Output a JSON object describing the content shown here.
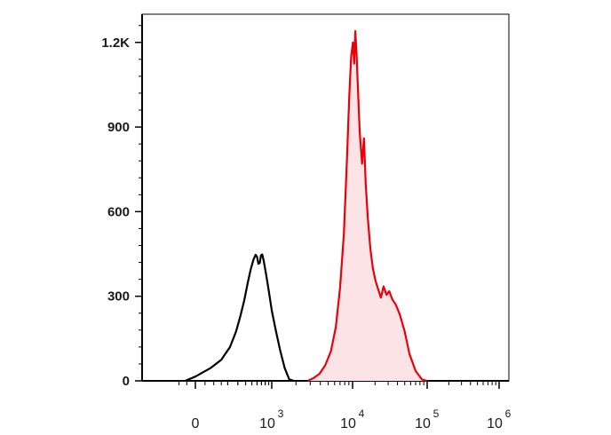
{
  "chart_data": {
    "type": "area",
    "title": "",
    "xlabel": "",
    "ylabel": "",
    "x_scale": "biexponential",
    "ylim": [
      0,
      1300
    ],
    "y_ticks": [
      {
        "value": 0,
        "label": "0"
      },
      {
        "value": 300,
        "label": "300"
      },
      {
        "value": 600,
        "label": "600"
      },
      {
        "value": 900,
        "label": "900"
      },
      {
        "value": 1200,
        "label": "1.2K"
      }
    ],
    "x_ticks": [
      {
        "value": 0,
        "base": "0",
        "exp": ""
      },
      {
        "value": 1000,
        "base": "10",
        "exp": "3"
      },
      {
        "value": 10000,
        "base": "10",
        "exp": "4"
      },
      {
        "value": 100000,
        "base": "10",
        "exp": "5"
      },
      {
        "value": 1000000,
        "base": "10",
        "exp": "6"
      }
    ],
    "grid": false,
    "legend": "none",
    "series": [
      {
        "style": "line",
        "color": "#000000",
        "points": [
          [
            -60,
            0
          ],
          [
            0,
            15
          ],
          [
            80,
            45
          ],
          [
            150,
            75
          ],
          [
            220,
            120
          ],
          [
            280,
            175
          ],
          [
            330,
            230
          ],
          [
            380,
            285
          ],
          [
            430,
            345
          ],
          [
            480,
            395
          ],
          [
            530,
            430
          ],
          [
            570,
            447
          ],
          [
            600,
            440
          ],
          [
            630,
            415
          ],
          [
            660,
            418
          ],
          [
            690,
            445
          ],
          [
            720,
            448
          ],
          [
            760,
            425
          ],
          [
            820,
            380
          ],
          [
            900,
            320
          ],
          [
            1000,
            250
          ],
          [
            1130,
            175
          ],
          [
            1280,
            105
          ],
          [
            1450,
            45
          ],
          [
            1650,
            5
          ],
          [
            1900,
            0
          ]
        ]
      },
      {
        "style": "filled",
        "color": "#e8000b",
        "fill": "#fbe3e6",
        "points": [
          [
            2800,
            0
          ],
          [
            3300,
            10
          ],
          [
            3900,
            25
          ],
          [
            4600,
            55
          ],
          [
            5400,
            105
          ],
          [
            6200,
            190
          ],
          [
            7000,
            330
          ],
          [
            7800,
            520
          ],
          [
            8500,
            780
          ],
          [
            9100,
            1010
          ],
          [
            9600,
            1150
          ],
          [
            10100,
            1200
          ],
          [
            10500,
            1125
          ],
          [
            10900,
            1240
          ],
          [
            11300,
            1160
          ],
          [
            11800,
            1040
          ],
          [
            12500,
            880
          ],
          [
            13400,
            770
          ],
          [
            14200,
            860
          ],
          [
            15000,
            700
          ],
          [
            16000,
            580
          ],
          [
            17300,
            470
          ],
          [
            18700,
            400
          ],
          [
            20300,
            355
          ],
          [
            22000,
            325
          ],
          [
            24000,
            295
          ],
          [
            26000,
            335
          ],
          [
            28500,
            305
          ],
          [
            31000,
            318
          ],
          [
            34000,
            290
          ],
          [
            38000,
            270
          ],
          [
            43000,
            235
          ],
          [
            50000,
            175
          ],
          [
            58000,
            95
          ],
          [
            70000,
            35
          ],
          [
            85000,
            5
          ],
          [
            100000,
            0
          ]
        ]
      }
    ]
  }
}
